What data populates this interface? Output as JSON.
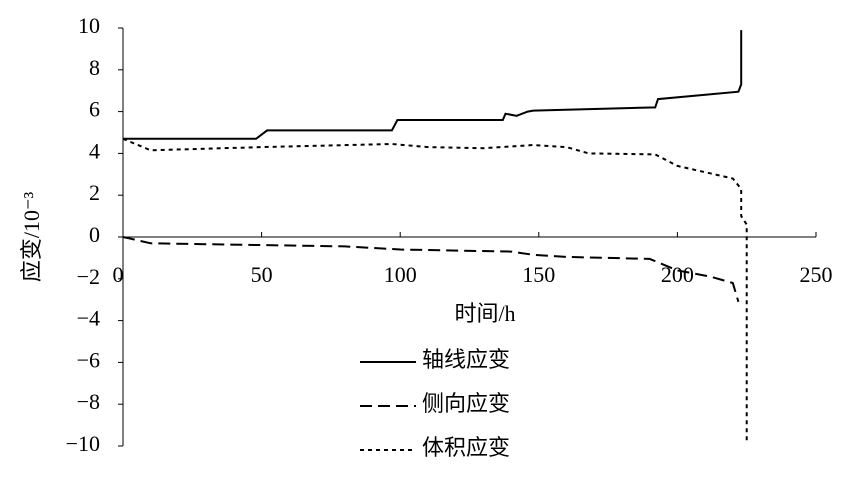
{
  "chart_data": {
    "type": "line",
    "x_label": "时间/h",
    "y_label": "应变/10⁻³",
    "xlim": [
      0,
      250
    ],
    "xticks": [
      0,
      50,
      100,
      150,
      200,
      250
    ],
    "ylim": [
      -10,
      10
    ],
    "yticks": [
      {
        "value": -10,
        "label": "−10"
      },
      {
        "value": -8,
        "label": "−8"
      },
      {
        "value": -6,
        "label": "−6"
      },
      {
        "value": -4,
        "label": "−4"
      },
      {
        "value": -2,
        "label": "−2"
      },
      0,
      2,
      4,
      6,
      8,
      10
    ],
    "legend": "below",
    "series": [
      {
        "name": "轴线应变",
        "color": "#000000",
        "dash": "none",
        "x": [
          0,
          48,
          52,
          97,
          99,
          137,
          138,
          142,
          146,
          148,
          192,
          193,
          222,
          223,
          223
        ],
        "values": [
          4.7,
          4.7,
          5.1,
          5.1,
          5.6,
          5.6,
          5.9,
          5.8,
          6.0,
          6.05,
          6.2,
          6.6,
          6.95,
          7.3,
          9.9
        ]
      },
      {
        "name": "侧向应变",
        "color": "#000000",
        "dash": "12 6",
        "x": [
          0,
          10,
          80,
          100,
          140,
          148,
          160,
          190,
          200,
          212,
          220,
          222
        ],
        "values": [
          0,
          -0.3,
          -0.45,
          -0.6,
          -0.7,
          -0.85,
          -0.95,
          -1.05,
          -1.6,
          -1.9,
          -2.2,
          -3.1
        ]
      },
      {
        "name": "体积应变",
        "color": "#000000",
        "dash": "4 4",
        "x": [
          0,
          10,
          50,
          97,
          110,
          130,
          148,
          160,
          168,
          192,
          200,
          220,
          223,
          223,
          225,
          225
        ],
        "values": [
          4.7,
          4.15,
          4.3,
          4.45,
          4.3,
          4.25,
          4.4,
          4.3,
          4.0,
          3.95,
          3.4,
          2.8,
          2.3,
          1.0,
          0.6,
          -9.8
        ]
      }
    ]
  }
}
